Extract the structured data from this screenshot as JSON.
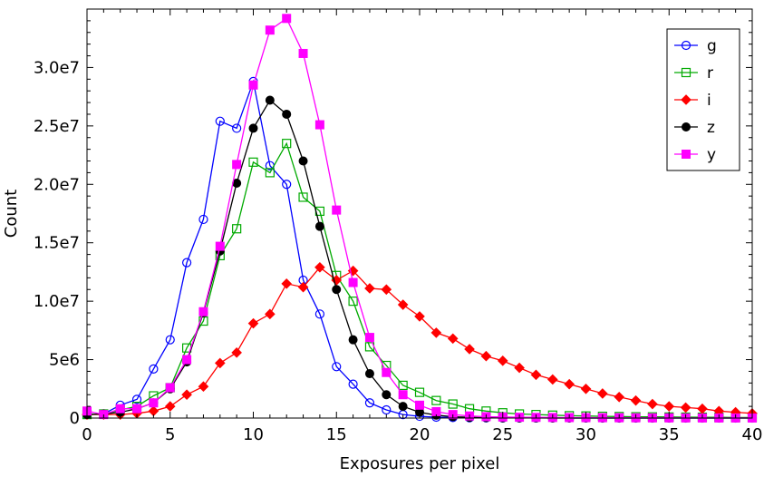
{
  "chart_data": {
    "type": "line",
    "title": "",
    "xlabel": "Exposures per pixel",
    "ylabel": "Count",
    "xlim": [
      0,
      40
    ],
    "ylim": [
      0,
      35000000
    ],
    "xticks": [
      0,
      5,
      10,
      15,
      20,
      25,
      30,
      35,
      40
    ],
    "xtick_labels": [
      "0",
      "5",
      "10",
      "15",
      "20",
      "25",
      "30",
      "35",
      "40"
    ],
    "yticks": [
      0,
      5000000,
      10000000,
      15000000,
      20000000,
      25000000,
      30000000
    ],
    "ytick_labels": [
      "0",
      "5e6",
      "1.0e7",
      "1.5e7",
      "2.0e7",
      "2.5e7",
      "3.0e7"
    ],
    "grid": false,
    "legend_position": "top-right",
    "series": [
      {
        "name": "g",
        "color": "#0000ff",
        "marker": "open-circle",
        "x": [
          0,
          1,
          2,
          3,
          4,
          5,
          6,
          7,
          8,
          9,
          10,
          11,
          12,
          13,
          14,
          15,
          16,
          17,
          18,
          19,
          20,
          21,
          22,
          23,
          24,
          25,
          26,
          27,
          28,
          29,
          30,
          31,
          32,
          33,
          34,
          35,
          36,
          37,
          38,
          39,
          40
        ],
        "values": [
          300000,
          350000,
          1100000,
          1600000,
          4200000,
          6700000,
          13300000,
          17000000,
          25400000,
          24800000,
          28800000,
          21600000,
          20000000,
          11800000,
          8900000,
          4400000,
          2900000,
          1300000,
          700000,
          300000,
          150000,
          80000,
          50000,
          30000,
          20000,
          10000,
          8000,
          6000,
          5000,
          4000,
          3000,
          2000,
          2000,
          1000,
          1000,
          1000,
          1000,
          1000,
          500,
          500,
          500
        ]
      },
      {
        "name": "r",
        "color": "#00aa00",
        "marker": "open-square",
        "x": [
          0,
          1,
          2,
          3,
          4,
          5,
          6,
          7,
          8,
          9,
          10,
          11,
          12,
          13,
          14,
          15,
          16,
          17,
          18,
          19,
          20,
          21,
          22,
          23,
          24,
          25,
          26,
          27,
          28,
          29,
          30,
          31,
          32,
          33,
          34,
          35,
          36,
          37,
          38,
          39,
          40
        ],
        "values": [
          300000,
          350000,
          700000,
          1000000,
          1900000,
          2600000,
          6000000,
          8300000,
          13900000,
          16200000,
          21900000,
          21000000,
          23500000,
          18900000,
          17700000,
          12200000,
          10000000,
          6100000,
          4500000,
          2800000,
          2200000,
          1500000,
          1200000,
          800000,
          600000,
          450000,
          350000,
          300000,
          250000,
          200000,
          180000,
          150000,
          130000,
          110000,
          100000,
          90000,
          80000,
          70000,
          60000,
          50000,
          50000
        ]
      },
      {
        "name": "i",
        "color": "#ff0000",
        "marker": "filled-diamond",
        "x": [
          0,
          1,
          2,
          3,
          4,
          5,
          6,
          7,
          8,
          9,
          10,
          11,
          12,
          13,
          14,
          15,
          16,
          17,
          18,
          19,
          20,
          21,
          22,
          23,
          24,
          25,
          26,
          27,
          28,
          29,
          30,
          31,
          32,
          33,
          34,
          35,
          36,
          37,
          38,
          39,
          40
        ],
        "values": [
          300000,
          300000,
          300000,
          400000,
          600000,
          1000000,
          2000000,
          2700000,
          4700000,
          5600000,
          8100000,
          8900000,
          11500000,
          11200000,
          12900000,
          11800000,
          12600000,
          11100000,
          11000000,
          9700000,
          8700000,
          7300000,
          6800000,
          5900000,
          5300000,
          4900000,
          4300000,
          3700000,
          3300000,
          2900000,
          2500000,
          2100000,
          1800000,
          1500000,
          1200000,
          1000000,
          900000,
          800000,
          600000,
          500000,
          400000
        ]
      },
      {
        "name": "z",
        "color": "#000000",
        "marker": "filled-circle",
        "x": [
          0,
          1,
          2,
          3,
          4,
          5,
          6,
          7,
          8,
          9,
          10,
          11,
          12,
          13,
          14,
          15,
          16,
          17,
          18,
          19,
          20,
          21,
          22,
          23,
          24,
          25,
          26,
          27,
          28,
          29,
          30,
          31,
          32,
          33,
          34,
          35,
          36,
          37,
          38,
          39,
          40
        ],
        "values": [
          300000,
          350000,
          500000,
          800000,
          1300000,
          2500000,
          4800000,
          9000000,
          14300000,
          20100000,
          24800000,
          27200000,
          26000000,
          22000000,
          16400000,
          11000000,
          6700000,
          3800000,
          2000000,
          1000000,
          500000,
          250000,
          120000,
          60000,
          30000,
          15000,
          8000,
          5000,
          3000,
          2000,
          1000,
          1000,
          500,
          500,
          500,
          500,
          500,
          500,
          500,
          500,
          500
        ]
      },
      {
        "name": "y",
        "color": "#ff00ff",
        "marker": "filled-square",
        "x": [
          0,
          1,
          2,
          3,
          4,
          5,
          6,
          7,
          8,
          9,
          10,
          11,
          12,
          13,
          14,
          15,
          16,
          17,
          18,
          19,
          20,
          21,
          22,
          23,
          24,
          25,
          26,
          27,
          28,
          29,
          30,
          31,
          32,
          33,
          34,
          35,
          36,
          37,
          38,
          39,
          40
        ],
        "values": [
          600000,
          300000,
          800000,
          800000,
          1300000,
          2600000,
          5000000,
          9100000,
          14700000,
          21700000,
          28500000,
          33200000,
          34200000,
          31200000,
          25100000,
          17800000,
          11600000,
          6900000,
          3900000,
          2000000,
          1100000,
          550000,
          300000,
          180000,
          120000,
          90000,
          70000,
          60000,
          50000,
          40000,
          35000,
          30000,
          25000,
          20000,
          15000,
          12000,
          10000,
          8000,
          6000,
          5000,
          4000
        ]
      }
    ]
  }
}
